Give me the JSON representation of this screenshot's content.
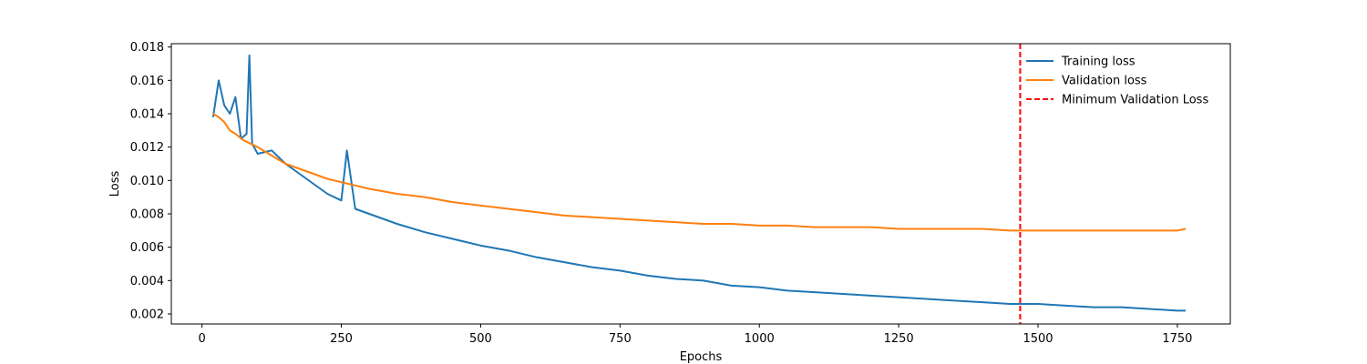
{
  "chart_data": {
    "type": "line",
    "title": "",
    "xlabel": "Epochs",
    "ylabel": "Loss",
    "xlim": [
      -55,
      1845
    ],
    "ylim": [
      0.0014,
      0.0182
    ],
    "xticks": [
      0,
      250,
      500,
      750,
      1000,
      1250,
      1500,
      1750
    ],
    "yticks": [
      0.002,
      0.004,
      0.006,
      0.008,
      0.01,
      0.012,
      0.014,
      0.016,
      0.018
    ],
    "xtick_labels": [
      "0",
      "250",
      "500",
      "750",
      "1000",
      "1250",
      "1500",
      "1750"
    ],
    "ytick_labels": [
      "0.002",
      "0.004",
      "0.006",
      "0.008",
      "0.010",
      "0.012",
      "0.014",
      "0.016",
      "0.018"
    ],
    "grid": false,
    "legend_position": "top-right",
    "series": [
      {
        "name": "Training loss",
        "color": "#1f77b4",
        "style": "solid",
        "x": [
          20,
          30,
          40,
          50,
          60,
          70,
          80,
          85,
          90,
          100,
          125,
          150,
          175,
          200,
          225,
          250,
          260,
          275,
          300,
          350,
          400,
          450,
          500,
          550,
          600,
          650,
          700,
          750,
          800,
          850,
          900,
          950,
          1000,
          1050,
          1100,
          1150,
          1200,
          1250,
          1300,
          1350,
          1400,
          1450,
          1500,
          1550,
          1600,
          1650,
          1700,
          1750,
          1765
        ],
        "y": [
          0.0138,
          0.016,
          0.0145,
          0.014,
          0.015,
          0.0125,
          0.0128,
          0.0175,
          0.0122,
          0.0116,
          0.0118,
          0.011,
          0.0104,
          0.0098,
          0.0092,
          0.0088,
          0.0118,
          0.0083,
          0.008,
          0.0074,
          0.0069,
          0.0065,
          0.0061,
          0.0058,
          0.0054,
          0.0051,
          0.0048,
          0.0046,
          0.0043,
          0.0041,
          0.004,
          0.0037,
          0.0036,
          0.0034,
          0.0033,
          0.0032,
          0.0031,
          0.003,
          0.0029,
          0.0028,
          0.0027,
          0.0026,
          0.0026,
          0.0025,
          0.0024,
          0.0024,
          0.0023,
          0.0022,
          0.0022
        ]
      },
      {
        "name": "Validation loss",
        "color": "#ff7f0e",
        "style": "solid",
        "x": [
          20,
          30,
          40,
          50,
          60,
          75,
          100,
          125,
          150,
          175,
          200,
          225,
          250,
          275,
          300,
          350,
          400,
          450,
          500,
          550,
          600,
          650,
          700,
          750,
          800,
          850,
          900,
          950,
          1000,
          1050,
          1100,
          1150,
          1200,
          1250,
          1300,
          1350,
          1400,
          1450,
          1500,
          1550,
          1600,
          1650,
          1700,
          1750,
          1765
        ],
        "y": [
          0.014,
          0.0138,
          0.0135,
          0.013,
          0.0128,
          0.0124,
          0.012,
          0.0115,
          0.011,
          0.0107,
          0.0104,
          0.0101,
          0.0099,
          0.0097,
          0.0095,
          0.0092,
          0.009,
          0.0087,
          0.0085,
          0.0083,
          0.0081,
          0.0079,
          0.0078,
          0.0077,
          0.0076,
          0.0075,
          0.0074,
          0.0074,
          0.0073,
          0.0073,
          0.0072,
          0.0072,
          0.0072,
          0.0071,
          0.0071,
          0.0071,
          0.0071,
          0.007,
          0.007,
          0.007,
          0.007,
          0.007,
          0.007,
          0.007,
          0.0071
        ]
      }
    ],
    "vlines": [
      {
        "name": "Minimum Validation Loss",
        "x": 1468,
        "color": "#ff0000",
        "style": "dashed"
      }
    ]
  }
}
